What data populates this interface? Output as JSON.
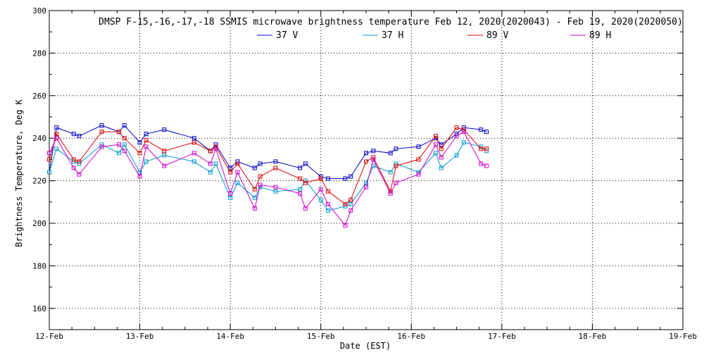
{
  "chart_data": {
    "type": "line",
    "title": "DMSP F-15,-16,-17,-18 SSMIS microwave brightness temperature Feb 12, 2020(2020043) - Feb 19, 2020(2020050)",
    "xlabel": "Date (EST)",
    "ylabel": "Brightness Temperature, Deg K",
    "x_ticks": [
      "12-Feb",
      "13-Feb",
      "14-Feb",
      "15-Feb",
      "16-Feb",
      "17-Feb",
      "18-Feb",
      "19-Feb"
    ],
    "x_range": [
      0,
      7
    ],
    "x_unit": "days",
    "ylim": [
      150,
      300
    ],
    "y_ticks": [
      160,
      180,
      200,
      220,
      240,
      260,
      280,
      300
    ],
    "grid": true,
    "legend_position": "top-center",
    "series": [
      {
        "name": "37 V",
        "color": "#0000cc",
        "x": [
          0.0,
          0.08,
          0.27,
          0.33,
          0.58,
          0.77,
          0.83,
          1.0,
          1.07,
          1.27,
          1.6,
          1.78,
          1.84,
          2.0,
          2.08,
          2.27,
          2.33,
          2.5,
          2.77,
          2.83,
          3.0,
          3.08,
          3.27,
          3.33,
          3.5,
          3.58,
          3.77,
          3.83,
          4.08,
          4.27,
          4.33,
          4.5,
          4.58,
          4.77,
          4.83
        ],
        "values": [
          224,
          245,
          242,
          241,
          246,
          243,
          246,
          238,
          242,
          244,
          240,
          234,
          237,
          226,
          229,
          226,
          228,
          229,
          226,
          228,
          222,
          221,
          221,
          222,
          233,
          234,
          233,
          235,
          236,
          240,
          237,
          242,
          245,
          244,
          243
        ]
      },
      {
        "name": "37 H",
        "color": "#0099cc",
        "x": [
          0.0,
          0.08,
          0.27,
          0.33,
          0.58,
          0.77,
          0.83,
          1.0,
          1.07,
          1.27,
          1.6,
          1.78,
          1.84,
          2.0,
          2.08,
          2.27,
          2.33,
          2.5,
          2.77,
          2.83,
          3.0,
          3.08,
          3.27,
          3.33,
          3.5,
          3.58,
          3.77,
          3.83,
          4.08,
          4.27,
          4.33,
          4.5,
          4.58,
          4.77,
          4.83
        ],
        "values": [
          224,
          235,
          229,
          228,
          237,
          233,
          237,
          224,
          229,
          232,
          229,
          224,
          228,
          212,
          219,
          212,
          217,
          215,
          216,
          220,
          211,
          206,
          208,
          209,
          219,
          227,
          224,
          228,
          224,
          233,
          226,
          232,
          238,
          236,
          234
        ]
      },
      {
        "name": "89 V",
        "color": "#dd0000",
        "x": [
          0.0,
          0.08,
          0.27,
          0.33,
          0.58,
          0.77,
          0.83,
          1.0,
          1.07,
          1.27,
          1.6,
          1.78,
          1.84,
          2.0,
          2.08,
          2.27,
          2.33,
          2.5,
          2.77,
          2.83,
          3.0,
          3.08,
          3.27,
          3.33,
          3.5,
          3.58,
          3.77,
          3.83,
          4.08,
          4.27,
          4.33,
          4.5,
          4.58,
          4.77,
          4.83
        ],
        "values": [
          230,
          242,
          230,
          229,
          243,
          243,
          240,
          233,
          239,
          234,
          238,
          234,
          236,
          224,
          228,
          216,
          222,
          226,
          221,
          219,
          221,
          215,
          209,
          211,
          229,
          231,
          215,
          227,
          230,
          241,
          235,
          245,
          244,
          235,
          235
        ]
      },
      {
        "name": "89 H",
        "color": "#cc00cc",
        "x": [
          0.0,
          0.08,
          0.27,
          0.33,
          0.58,
          0.77,
          0.83,
          1.0,
          1.07,
          1.27,
          1.6,
          1.78,
          1.84,
          2.0,
          2.08,
          2.27,
          2.33,
          2.5,
          2.77,
          2.83,
          3.0,
          3.08,
          3.27,
          3.33,
          3.5,
          3.58,
          3.77,
          3.83,
          4.08,
          4.27,
          4.33,
          4.5,
          4.58,
          4.77,
          4.83
        ],
        "values": [
          233,
          240,
          226,
          223,
          236,
          237,
          234,
          222,
          236,
          227,
          233,
          228,
          235,
          214,
          224,
          207,
          218,
          217,
          214,
          207,
          216,
          209,
          199,
          206,
          217,
          230,
          214,
          219,
          223,
          237,
          231,
          241,
          243,
          228,
          227
        ]
      }
    ]
  }
}
